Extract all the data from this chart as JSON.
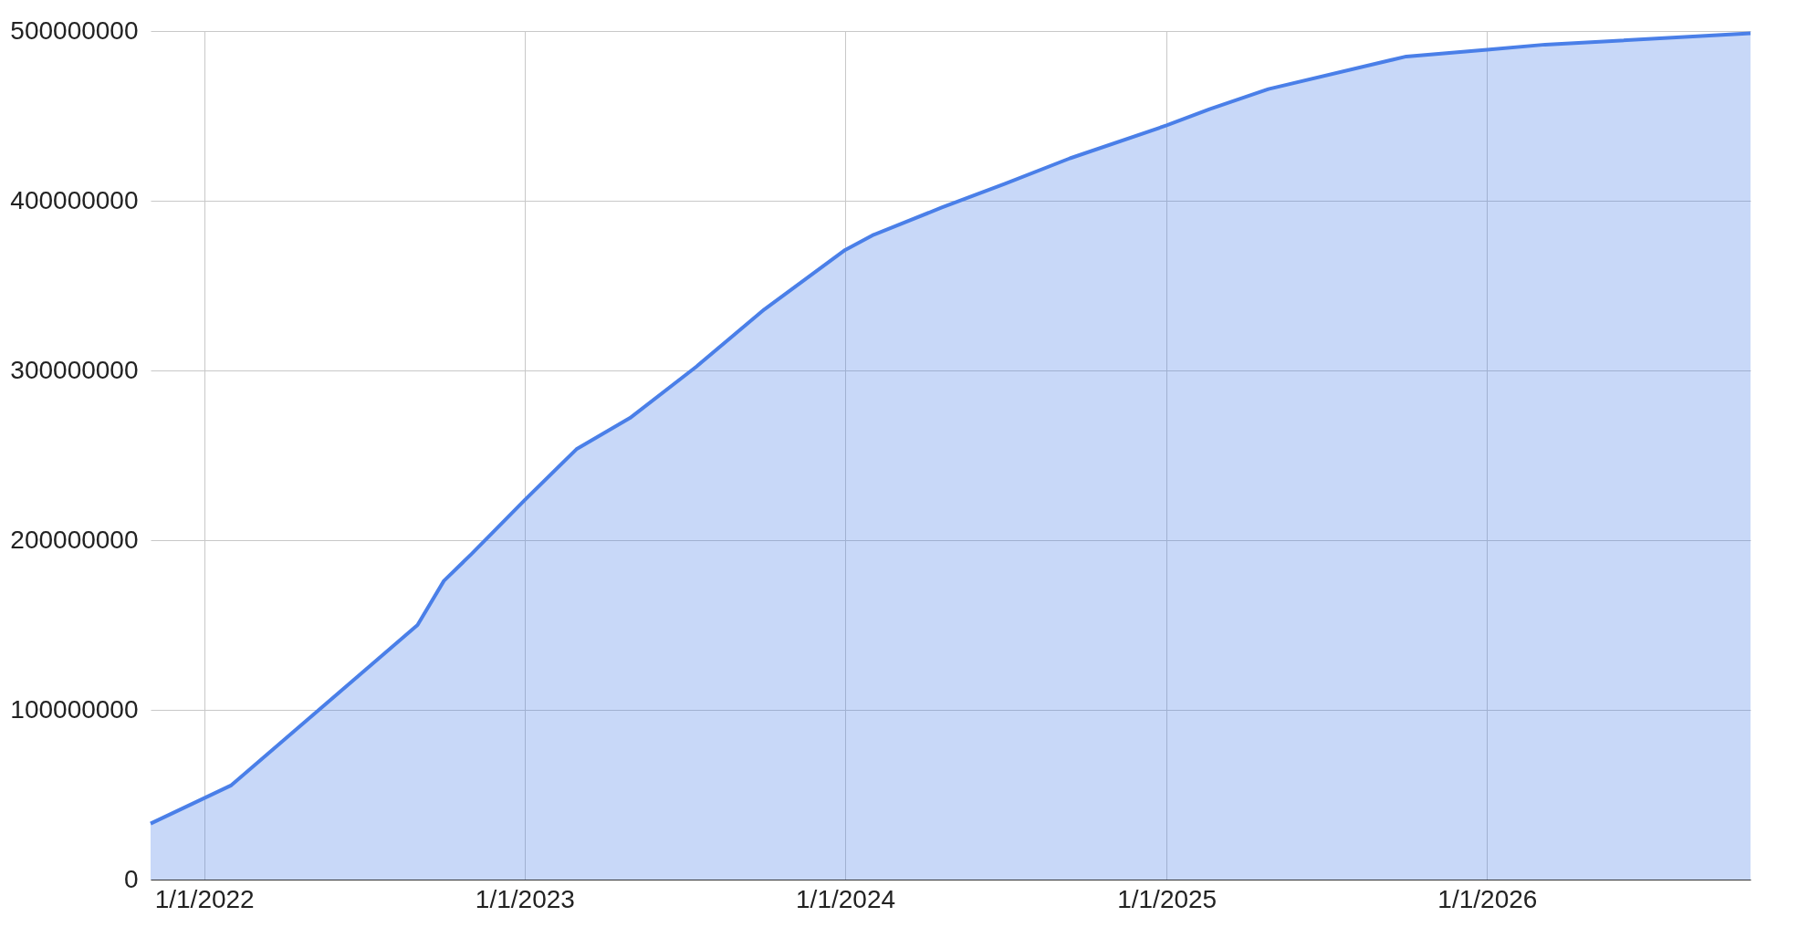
{
  "chart_data": {
    "type": "area",
    "x": [
      "2021-11-01",
      "2022-02-01",
      "2022-09-01",
      "2022-10-01",
      "2022-11-01",
      "2023-01-01",
      "2023-03-01",
      "2023-05-01",
      "2023-07-15",
      "2023-10-01",
      "2024-01-01",
      "2024-02-01",
      "2024-04-20",
      "2024-07-01",
      "2024-09-13",
      "2025-01-01",
      "2025-02-19",
      "2025-04-27",
      "2025-10-01",
      "2026-01-01",
      "2026-03-08",
      "2026-10-28"
    ],
    "series": [
      {
        "color": "#4a7fe8",
        "values": [
          33000000,
          55600000,
          150000000,
          176000000,
          191600000,
          223600000,
          253600000,
          272000000,
          302000000,
          336000000,
          371000000,
          379600000,
          396000000,
          410000000,
          425000000,
          444400000,
          454000000,
          465800000,
          485000000,
          489000000,
          492000000,
          498600000
        ]
      }
    ],
    "xlim": [
      "2021-11-01",
      "2026-10-28"
    ],
    "xticks": [
      {
        "value": "2022-01-01",
        "label": "1/1/2022"
      },
      {
        "value": "2023-01-01",
        "label": "1/1/2023"
      },
      {
        "value": "2024-01-01",
        "label": "1/1/2024"
      },
      {
        "value": "2025-01-01",
        "label": "1/1/2025"
      },
      {
        "value": "2026-01-01",
        "label": "1/1/2026"
      }
    ],
    "ylim": [
      0,
      500000000
    ],
    "yticks": [
      0,
      100000000,
      200000000,
      300000000,
      400000000,
      500000000
    ],
    "grid": true
  }
}
